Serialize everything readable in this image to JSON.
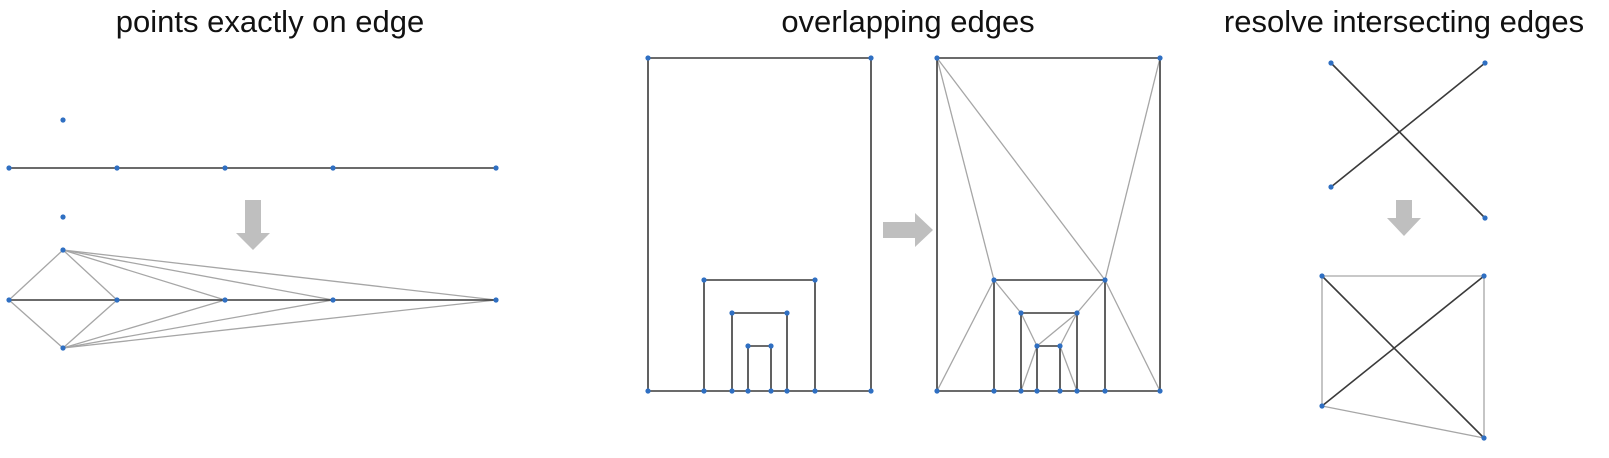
{
  "panels": {
    "points": {
      "title": "points exactly on edge"
    },
    "overlap": {
      "title": "overlapping edges"
    },
    "resolve": {
      "title": "resolve intersecting edges"
    }
  },
  "colors": {
    "input_edge": "#3a3a3a",
    "added_edge": "#a6a6a6",
    "vertex": "#2f6fc2",
    "arrow": "#bfbfbf",
    "title_text": "#111111"
  }
}
